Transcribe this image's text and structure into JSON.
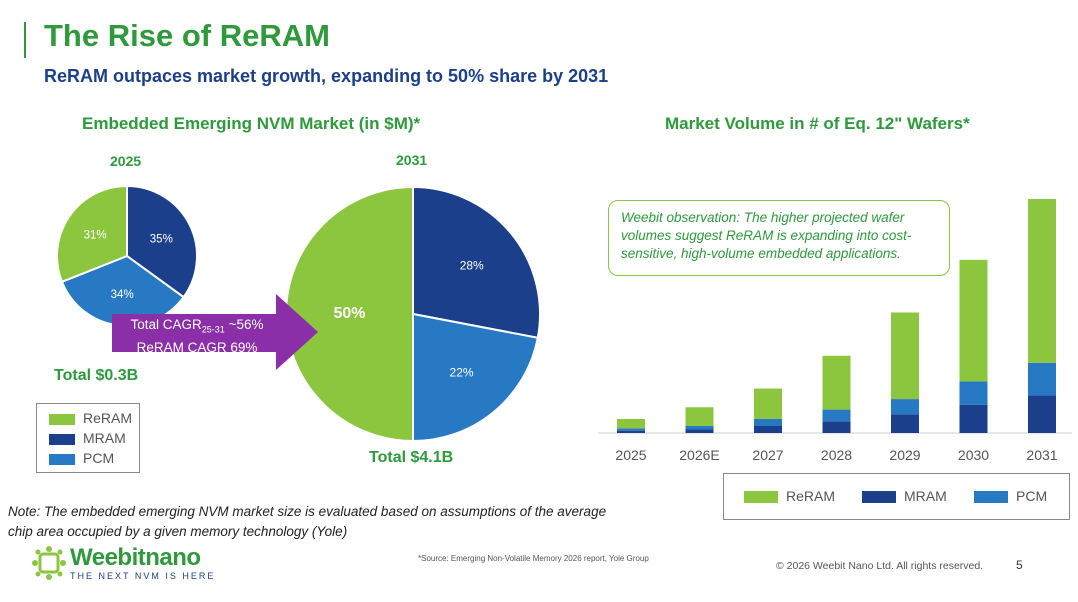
{
  "header": {
    "title": "The Rise of ReRAM",
    "subtitle": "ReRAM outpaces market growth, expanding to 50% share by 2031"
  },
  "left_section": {
    "title": "Embedded Emerging NVM Market (in $M)*",
    "pie_2025": {
      "year": "2025",
      "total": "Total $0.3B"
    },
    "pie_2031": {
      "year": "2031",
      "total": "Total $4.1B"
    },
    "arrow": {
      "line1_prefix": "Total CAGR",
      "line1_sub": "25-31",
      "line1_suffix": " ~56%",
      "line2": "ReRAM CAGR 69%"
    }
  },
  "right_section": {
    "title": "Market Volume in # of Eq. 12\" Wafers*",
    "callout": "Weebit observation: The higher projected wafer volumes suggest ReRAM is expanding into cost-sensitive, high-volume embedded applications."
  },
  "legend": [
    "ReRAM",
    "MRAM",
    "PCM"
  ],
  "colors": {
    "ReRAM": "#8cc63f",
    "MRAM": "#1c3f8c",
    "PCM": "#2779c4",
    "brand_green": "#2e9a3b",
    "arrow": "#8b2fa8"
  },
  "chart_data": [
    {
      "type": "pie",
      "year": "2025",
      "total": "Total $0.3B",
      "slices": [
        {
          "name": "MRAM",
          "value": 35,
          "label": "35%"
        },
        {
          "name": "PCM",
          "value": 34,
          "label": "34%"
        },
        {
          "name": "ReRAM",
          "value": 31,
          "label": "31%"
        }
      ]
    },
    {
      "type": "pie",
      "year": "2031",
      "total": "Total $4.1B",
      "slices": [
        {
          "name": "MRAM",
          "value": 28,
          "label": "28%"
        },
        {
          "name": "PCM",
          "value": 22,
          "label": "22%"
        },
        {
          "name": "ReRAM",
          "value": 50,
          "label": "50%"
        }
      ]
    },
    {
      "type": "bar",
      "stacked": true,
      "categories": [
        "2025",
        "2026E",
        "2027",
        "2028",
        "2029",
        "2030",
        "2031"
      ],
      "ylim": [
        0,
        100
      ],
      "series": [
        {
          "name": "MRAM",
          "values": [
            1,
            1.5,
            3,
            5,
            8,
            12,
            16
          ]
        },
        {
          "name": "PCM",
          "values": [
            1,
            1.5,
            3,
            5,
            6.5,
            10,
            14
          ]
        },
        {
          "name": "ReRAM",
          "values": [
            4,
            8,
            13,
            23,
            37,
            52,
            70
          ]
        }
      ],
      "legend_position": "bottom"
    }
  ],
  "footer": {
    "note": "Note: The embedded emerging NVM market size is evaluated based on assumptions of the average chip area occupied by a given memory technology (Yole)",
    "source": "*Source: Emerging Non-Volatile Memory 2026 report, Yole Group",
    "copyright": "© 2026 Weebit Nano Ltd. All rights reserved.",
    "page_number": "5",
    "logo_text": "Weebitnano",
    "logo_tagline": "THE NEXT NVM IS HERE"
  }
}
